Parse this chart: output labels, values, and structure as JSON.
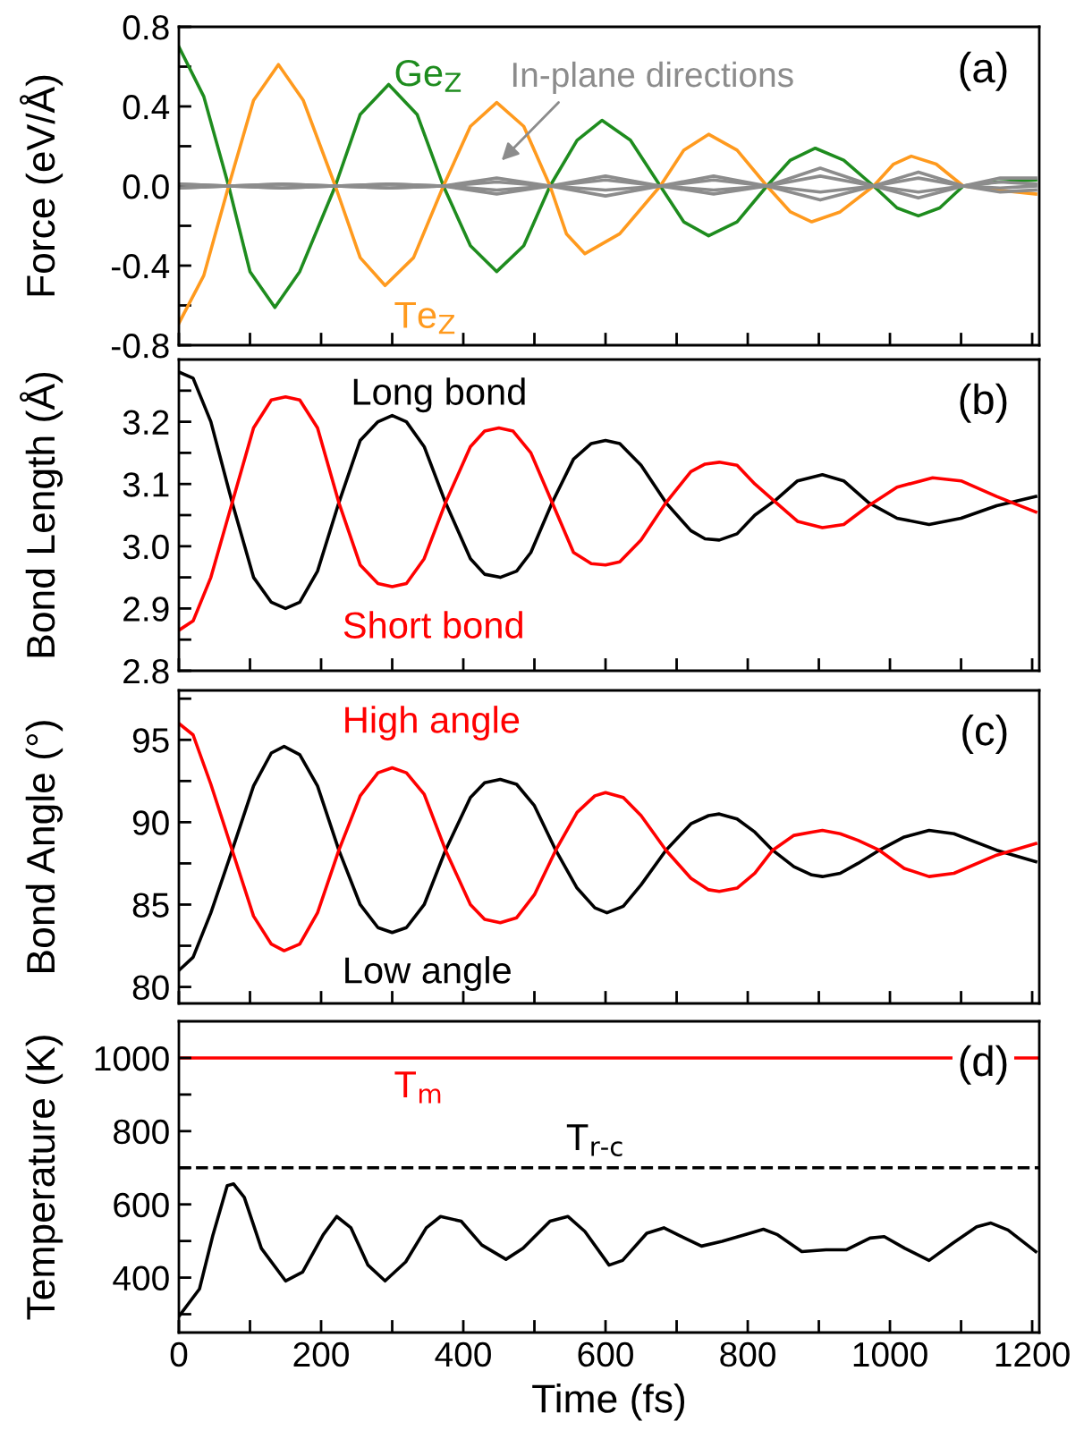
{
  "chart_data": [
    {
      "type": "line",
      "ylabel": "Force (eV/Å)",
      "xlim": [
        0,
        1210
      ],
      "ylim": [
        -0.8,
        0.8
      ],
      "xticks": [
        0,
        {
          "value": 100,
          "label": null
        },
        200,
        {
          "value": 300,
          "label": null
        },
        400,
        {
          "value": 500,
          "label": null
        },
        600,
        {
          "value": 700,
          "label": null
        },
        800,
        {
          "value": 900,
          "label": null
        },
        1000,
        {
          "value": 1100,
          "label": null
        },
        1200
      ],
      "yticks": [
        {
          "value": -0.8,
          "label": "-0.8"
        },
        {
          "value": -0.6,
          "label": null
        },
        {
          "value": -0.4,
          "label": "-0.4"
        },
        {
          "value": -0.2,
          "label": null
        },
        {
          "value": 0,
          "label": "0.0"
        },
        {
          "value": 0.2,
          "label": null
        },
        0.4,
        {
          "value": 0.6,
          "label": null
        },
        0.8
      ],
      "tick_labels": "y",
      "grid": false,
      "legend": false,
      "annotations": [
        "(a)",
        "In-plane directions"
      ],
      "series": [
        {
          "name": "Ge$_{Z}$",
          "color": "#1e8c1e",
          "x": [
            0,
            35,
            70,
            100,
            135,
            170,
            220,
            255,
            295,
            335,
            372,
            410,
            447,
            485,
            522,
            560,
            595,
            635,
            677,
            710,
            745,
            785,
            827,
            860,
            895,
            935,
            977,
            1010,
            1040,
            1070,
            1103,
            1150,
            1205
          ],
          "values": [
            0.7,
            0.45,
            0,
            -0.43,
            -0.61,
            -0.43,
            0,
            0.36,
            0.51,
            0.36,
            0,
            -0.3,
            -0.43,
            -0.3,
            0,
            0.23,
            0.33,
            0.23,
            0,
            -0.18,
            -0.25,
            -0.18,
            0,
            0.13,
            0.19,
            0.13,
            0,
            -0.11,
            -0.15,
            -0.11,
            0,
            0.02,
            0.03
          ]
        },
        {
          "name": "Te$_{Z}$",
          "color": "#ff9a1e",
          "x": [
            0,
            35,
            70,
            105,
            140,
            175,
            220,
            255,
            290,
            330,
            372,
            410,
            447,
            485,
            522,
            545,
            571,
            620,
            677,
            710,
            745,
            785,
            827,
            860,
            890,
            930,
            977,
            1005,
            1030,
            1065,
            1103,
            1150,
            1205
          ],
          "values": [
            -0.69,
            -0.45,
            0,
            0.43,
            0.61,
            0.43,
            0,
            -0.36,
            -0.5,
            -0.36,
            0,
            0.3,
            0.42,
            0.3,
            0,
            -0.24,
            -0.34,
            -0.24,
            0,
            0.18,
            0.26,
            0.18,
            0,
            -0.13,
            -0.18,
            -0.13,
            0,
            0.11,
            0.15,
            0.11,
            0,
            -0.02,
            -0.04
          ]
        },
        {
          "color": "#8c8c8c",
          "x": [
            0,
            70,
            145,
            220,
            296,
            372,
            447,
            522,
            600,
            677,
            752,
            827,
            902,
            977,
            1040,
            1103,
            1155,
            1205
          ],
          "values": [
            0.01,
            0,
            0.01,
            0,
            0.01,
            0,
            0.04,
            0,
            0.05,
            0,
            0.05,
            0,
            0.09,
            0,
            0.07,
            0,
            0.04,
            0.04
          ]
        },
        {
          "color": "#8c8c8c",
          "x": [
            0,
            70,
            145,
            220,
            296,
            372,
            447,
            522,
            600,
            677,
            752,
            827,
            902,
            977,
            1040,
            1103,
            1155,
            1205
          ],
          "values": [
            -0.01,
            0,
            -0.01,
            0,
            -0.01,
            0,
            -0.04,
            0,
            -0.05,
            0,
            -0.04,
            0,
            -0.07,
            0,
            -0.06,
            0,
            -0.03,
            -0.02
          ]
        },
        {
          "color": "#8c8c8c",
          "x": [
            0,
            70,
            145,
            220,
            296,
            372,
            447,
            522,
            600,
            677,
            752,
            827,
            902,
            977,
            1040,
            1103,
            1155,
            1205
          ],
          "values": [
            -0.01,
            0,
            0.01,
            0,
            -0.01,
            0,
            0.02,
            0,
            -0.02,
            0,
            0.03,
            0,
            0.05,
            0,
            -0.03,
            0,
            0.02,
            0.01
          ]
        },
        {
          "color": "#8c8c8c",
          "x": [
            0,
            70,
            145,
            220,
            296,
            372,
            447,
            522,
            600,
            677,
            752,
            827,
            902,
            977,
            1040,
            1103,
            1155,
            1205
          ],
          "values": [
            0.01,
            0,
            -0.01,
            0,
            0.01,
            0,
            -0.02,
            0,
            0.03,
            0,
            -0.02,
            0,
            -0.03,
            0,
            0.04,
            0,
            -0.01,
            0.0
          ]
        }
      ]
    },
    {
      "type": "line",
      "ylabel": "Bond Length (Å)",
      "xlim": [
        0,
        1210
      ],
      "ylim": [
        2.8,
        3.3
      ],
      "xticks": [
        0,
        {
          "value": 100,
          "label": null
        },
        200,
        {
          "value": 300,
          "label": null
        },
        400,
        {
          "value": 500,
          "label": null
        },
        600,
        {
          "value": 700,
          "label": null
        },
        800,
        {
          "value": 900,
          "label": null
        },
        1000,
        {
          "value": 1100,
          "label": null
        },
        1200
      ],
      "yticks": [
        2.8,
        {
          "value": 2.85,
          "label": null
        },
        2.9,
        {
          "value": 2.95,
          "label": null
        },
        {
          "value": 3.0,
          "label": "3.0"
        },
        {
          "value": 3.05,
          "label": null
        },
        3.1,
        {
          "value": 3.15,
          "label": null
        },
        3.2,
        {
          "value": 3.25,
          "label": null
        }
      ],
      "tick_labels": "y",
      "grid": false,
      "legend": false,
      "annotations": [
        "(b)"
      ],
      "series": [
        {
          "name": "Long bond",
          "color": "#000000",
          "x": [
            0,
            20,
            45,
            75,
            105,
            130,
            150,
            170,
            195,
            225,
            255,
            280,
            300,
            320,
            345,
            375,
            410,
            430,
            452,
            475,
            495,
            525,
            555,
            580,
            600,
            620,
            650,
            685,
            720,
            740,
            760,
            785,
            810,
            840,
            870,
            905,
            935,
            970,
            1010,
            1055,
            1100,
            1150,
            1205
          ],
          "values": [
            3.28,
            3.27,
            3.2,
            3.07,
            2.95,
            2.91,
            2.9,
            2.91,
            2.96,
            3.07,
            3.17,
            3.2,
            3.21,
            3.2,
            3.16,
            3.07,
            2.98,
            2.955,
            2.95,
            2.96,
            2.99,
            3.07,
            3.14,
            3.165,
            3.17,
            3.165,
            3.13,
            3.07,
            3.025,
            3.012,
            3.01,
            3.02,
            3.05,
            3.075,
            3.105,
            3.115,
            3.105,
            3.07,
            3.045,
            3.035,
            3.045,
            3.065,
            3.08
          ]
        },
        {
          "name": "Short bond",
          "color": "#ff0000",
          "x": [
            0,
            20,
            45,
            75,
            105,
            130,
            150,
            170,
            195,
            225,
            255,
            280,
            300,
            320,
            345,
            375,
            410,
            430,
            450,
            470,
            495,
            525,
            555,
            580,
            600,
            620,
            650,
            685,
            720,
            740,
            760,
            785,
            810,
            840,
            870,
            905,
            935,
            970,
            1010,
            1060,
            1100,
            1150,
            1205
          ],
          "values": [
            2.865,
            2.88,
            2.95,
            3.07,
            3.19,
            3.235,
            3.24,
            3.235,
            3.19,
            3.07,
            2.97,
            2.94,
            2.935,
            2.94,
            2.98,
            3.07,
            3.16,
            3.185,
            3.19,
            3.185,
            3.15,
            3.07,
            2.99,
            2.972,
            2.97,
            2.975,
            3.01,
            3.07,
            3.12,
            3.132,
            3.135,
            3.13,
            3.1,
            3.07,
            3.04,
            3.03,
            3.035,
            3.065,
            3.095,
            3.11,
            3.105,
            3.08,
            3.055
          ]
        }
      ]
    },
    {
      "type": "line",
      "ylabel": "Bond Angle (°)",
      "xlim": [
        0,
        1210
      ],
      "ylim": [
        79,
        98
      ],
      "xticks": [
        0,
        {
          "value": 100,
          "label": null
        },
        200,
        {
          "value": 300,
          "label": null
        },
        400,
        {
          "value": 500,
          "label": null
        },
        600,
        {
          "value": 700,
          "label": null
        },
        800,
        {
          "value": 900,
          "label": null
        },
        1000,
        {
          "value": 1100,
          "label": null
        },
        1200
      ],
      "yticks": [
        80,
        {
          "value": 82.5,
          "label": null
        },
        85,
        {
          "value": 87.5,
          "label": null
        },
        90,
        {
          "value": 92.5,
          "label": null
        },
        95,
        {
          "value": 97.5,
          "label": null
        }
      ],
      "tick_labels": "y",
      "grid": false,
      "legend": false,
      "annotations": [
        "(c)"
      ],
      "series": [
        {
          "name": "Low angle",
          "color": "#000000",
          "x": [
            0,
            20,
            45,
            75,
            105,
            130,
            148,
            170,
            195,
            225,
            255,
            280,
            300,
            320,
            345,
            375,
            410,
            430,
            452,
            475,
            500,
            530,
            560,
            585,
            602,
            625,
            650,
            685,
            720,
            745,
            760,
            785,
            810,
            835,
            865,
            890,
            905,
            930,
            955,
            985,
            1020,
            1055,
            1090,
            1150,
            1205
          ],
          "values": [
            81.0,
            81.8,
            84.5,
            88.3,
            92.2,
            94.2,
            94.6,
            94.1,
            92.2,
            88.3,
            85.0,
            83.6,
            83.3,
            83.6,
            85.0,
            88.3,
            91.5,
            92.4,
            92.6,
            92.3,
            91.0,
            88.3,
            86.0,
            84.8,
            84.5,
            84.9,
            86.2,
            88.3,
            89.9,
            90.4,
            90.5,
            90.2,
            89.4,
            88.3,
            87.3,
            86.8,
            86.7,
            86.9,
            87.5,
            88.3,
            89.1,
            89.5,
            89.3,
            88.3,
            87.6
          ]
        },
        {
          "name": "High angle",
          "color": "#ff0000",
          "x": [
            0,
            20,
            45,
            75,
            105,
            130,
            148,
            170,
            195,
            225,
            255,
            280,
            300,
            320,
            345,
            375,
            410,
            430,
            452,
            475,
            500,
            530,
            560,
            585,
            600,
            625,
            650,
            685,
            720,
            745,
            760,
            785,
            810,
            835,
            865,
            890,
            905,
            930,
            955,
            985,
            1020,
            1055,
            1090,
            1150,
            1205
          ],
          "values": [
            96.0,
            95.3,
            92.3,
            88.3,
            84.3,
            82.6,
            82.2,
            82.6,
            84.5,
            88.3,
            91.6,
            93.0,
            93.3,
            93.0,
            91.7,
            88.3,
            85.0,
            84.1,
            83.9,
            84.2,
            85.6,
            88.3,
            90.6,
            91.6,
            91.8,
            91.5,
            90.4,
            88.3,
            86.6,
            85.9,
            85.8,
            86.0,
            86.9,
            88.3,
            89.2,
            89.4,
            89.5,
            89.3,
            88.9,
            88.3,
            87.2,
            86.7,
            86.9,
            88.0,
            88.7
          ]
        }
      ]
    },
    {
      "type": "line",
      "xlabel": "Time (fs)",
      "ylabel": "Temperature (K)",
      "xlim": [
        0,
        1210
      ],
      "ylim": [
        250,
        1100
      ],
      "xticks": [
        0,
        {
          "value": 100,
          "label": null
        },
        200,
        {
          "value": 300,
          "label": null
        },
        400,
        {
          "value": 500,
          "label": null
        },
        600,
        {
          "value": 700,
          "label": null
        },
        800,
        {
          "value": 900,
          "label": null
        },
        1000,
        {
          "value": 1100,
          "label": null
        },
        1200
      ],
      "yticks": [
        {
          "value": 300,
          "label": null
        },
        400,
        {
          "value": 500,
          "label": null
        },
        600,
        {
          "value": 700,
          "label": null
        },
        800,
        {
          "value": 900,
          "label": null
        },
        1000
      ],
      "grid": false,
      "legend": false,
      "annotations": [
        "(d)"
      ],
      "ref_lines": [
        {
          "axis": "y",
          "value": 1000,
          "label": "T$_{m}$",
          "color": "#ff0000",
          "line_style": "solid"
        },
        {
          "axis": "y",
          "value": 700,
          "label": "T$_{r-c}$",
          "color": "#000000",
          "line_style": "dashed"
        }
      ],
      "series": [
        {
          "color": "#000000",
          "x": [
            0,
            29,
            48,
            68,
            77,
            92,
            116,
            150,
            174,
            203,
            222,
            242,
            266,
            290,
            319,
            348,
            368,
            397,
            426,
            460,
            484,
            522,
            547,
            571,
            605,
            624,
            658,
            682,
            706,
            735,
            764,
            803,
            822,
            842,
            876,
            910,
            939,
            972,
            992,
            1021,
            1055,
            1089,
            1122,
            1142,
            1166,
            1205
          ],
          "values": [
            294,
            369,
            517,
            651,
            656,
            619,
            480,
            391,
            415,
            517,
            567,
            536,
            434,
            391,
            443,
            536,
            567,
            554,
            489,
            450,
            480,
            554,
            567,
            526,
            434,
            447,
            521,
            536,
            513,
            486,
            499,
            521,
            532,
            517,
            471,
            476,
            476,
            508,
            512,
            480,
            447,
            495,
            539,
            549,
            530,
            471
          ]
        }
      ]
    }
  ]
}
